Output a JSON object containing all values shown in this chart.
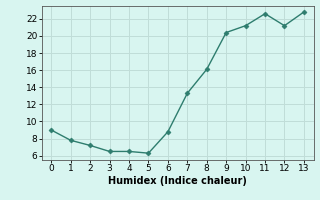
{
  "x": [
    0,
    1,
    2,
    3,
    4,
    5,
    6,
    7,
    8,
    9,
    10,
    11,
    12,
    13
  ],
  "y": [
    9.0,
    7.8,
    7.2,
    6.5,
    6.5,
    6.3,
    8.8,
    13.3,
    16.1,
    20.4,
    21.2,
    22.6,
    21.2,
    22.8
  ],
  "line_color": "#2e7d6e",
  "marker": "D",
  "marker_size": 2.5,
  "line_width": 1.0,
  "xlabel": "Humidex (Indice chaleur)",
  "xlabel_fontsize": 7,
  "xlim": [
    -0.5,
    13.5
  ],
  "ylim": [
    5.5,
    23.5
  ],
  "yticks": [
    6,
    8,
    10,
    12,
    14,
    16,
    18,
    20,
    22
  ],
  "xticks": [
    0,
    1,
    2,
    3,
    4,
    5,
    6,
    7,
    8,
    9,
    10,
    11,
    12,
    13
  ],
  "background_color": "#d8f5f0",
  "grid_color": "#c0ddd8",
  "tick_fontsize": 6.5
}
